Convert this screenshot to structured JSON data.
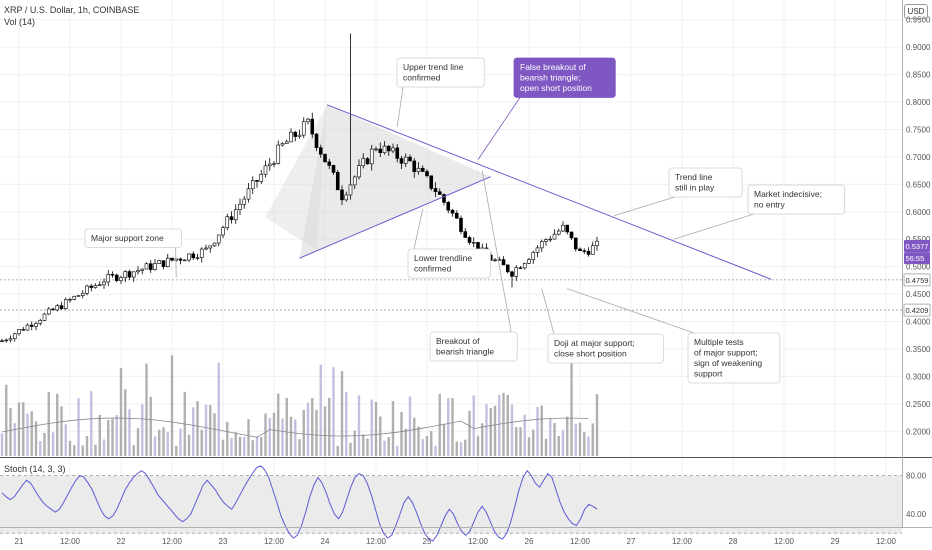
{
  "header": {
    "symbol": "XRP / U.S. Dollar, 1h, COINBASE",
    "volume_indicator": "Vol (14)",
    "stoch_indicator": "Stoch (14, 3, 3)",
    "currency_button": "USD"
  },
  "colors": {
    "bull_candle": "#ffffff",
    "bear_candle": "#000000",
    "trend_line": "#6a5acd",
    "triangle_fill": "#d9d9d9",
    "volume_gray": "#b0b0b0",
    "volume_purple": "#c8bde0",
    "callout_purple": "#7e57c2",
    "stoch_line": "#5b5bd6"
  },
  "chart_data": [
    {
      "type": "candlestick",
      "x_ticks": [
        "21",
        "12:00",
        "22",
        "12:00",
        "23",
        "12:00",
        "24",
        "12:00",
        "25",
        "12:00",
        "26",
        "12:00",
        "27",
        "12:00",
        "28",
        "12:00",
        "29",
        "12:00"
      ],
      "y_ticks": [
        "0.9500",
        "0.9000",
        "0.8500",
        "0.8000",
        "0.7500",
        "0.7000",
        "0.6500",
        "0.6000",
        "0.5500",
        "0.5000",
        "0.4500",
        "0.4000",
        "0.3500",
        "0.3000",
        "0.2500",
        "0.2000"
      ],
      "ylim": [
        0.155,
        0.975
      ],
      "price_labels": [
        {
          "value": 0.5377,
          "text": "0.5377",
          "style": "price"
        },
        {
          "value": 0.5155,
          "text": "56:55",
          "style": "timer"
        },
        {
          "value": 0.4759,
          "text": "0.4759",
          "style": "level"
        },
        {
          "value": 0.4209,
          "text": "0.4209",
          "style": "level"
        }
      ],
      "support_levels": [
        0.4759,
        0.4209
      ],
      "key_points": [
        {
          "t": 0,
          "price": 0.365
        },
        {
          "t": 24,
          "price": 0.4759
        },
        {
          "t": 48,
          "price": 0.53
        },
        {
          "t": 66,
          "price": 0.72
        },
        {
          "t": 72,
          "price": 0.76
        },
        {
          "t": 80,
          "price": 0.63
        },
        {
          "t": 88,
          "price": 0.72
        },
        {
          "t": 96,
          "price": 0.69
        },
        {
          "t": 102,
          "price": 0.64
        },
        {
          "t": 112,
          "price": 0.53
        },
        {
          "t": 120,
          "price": 0.49
        },
        {
          "t": 128,
          "price": 0.55
        },
        {
          "t": 132,
          "price": 0.57
        },
        {
          "t": 136,
          "price": 0.525
        },
        {
          "t": 140,
          "price": 0.5377
        }
      ],
      "trend_lines": [
        {
          "name": "upper",
          "from": {
            "t": 76.5,
            "price": 0.795
          },
          "to": {
            "t": 181,
            "price": 0.477
          }
        },
        {
          "name": "lower",
          "from": {
            "t": 70,
            "price": 0.5155
          },
          "to": {
            "t": 115,
            "price": 0.664
          }
        }
      ],
      "annotations": [
        {
          "text": [
            "Upper trend line",
            "confirmed"
          ],
          "box": "plain",
          "anchor": {
            "t": 93,
            "price": 0.755
          }
        },
        {
          "text": [
            "False breakout of",
            "bearish triangle;",
            "open short position"
          ],
          "box": "purple",
          "anchor": {
            "t": 112,
            "price": 0.695
          }
        },
        {
          "text": [
            "Trend line",
            "still in play"
          ],
          "box": "plain",
          "anchor": {
            "t": 144,
            "price": 0.593
          }
        },
        {
          "text": [
            "Market indecisive;",
            "no entry"
          ],
          "box": "plain",
          "anchor": {
            "t": 158,
            "price": 0.55
          }
        },
        {
          "text": [
            "Major support zone"
          ],
          "box": "plain",
          "anchor": {
            "t": 41,
            "price": 0.48
          }
        },
        {
          "text": [
            "Lower trendline",
            "confirmed"
          ],
          "box": "plain",
          "anchor": {
            "t": 99,
            "price": 0.605
          }
        },
        {
          "text": [
            "Breakout of",
            "bearish triangle"
          ],
          "box": "plain",
          "anchor": {
            "t": 113,
            "price": 0.675
          }
        },
        {
          "text": [
            "Doji at major support;",
            "close short position"
          ],
          "box": "plain",
          "anchor": {
            "t": 127,
            "price": 0.46
          }
        },
        {
          "text": [
            "Multiple tests",
            "of major support;",
            "sign of weakening",
            "support"
          ],
          "box": "plain",
          "anchor": {
            "t": 133,
            "price": 0.46
          }
        }
      ]
    },
    {
      "type": "stochastic",
      "y_ticks": [
        "80.00",
        "40.00"
      ],
      "ylim": [
        0,
        100
      ],
      "band": [
        20,
        80
      ],
      "k_values": [
        62,
        58,
        55,
        58,
        64,
        70,
        75,
        72,
        65,
        58,
        52,
        48,
        45,
        42,
        45,
        52,
        60,
        68,
        75,
        80,
        78,
        72,
        65,
        55,
        45,
        38,
        35,
        38,
        45,
        55,
        65,
        72,
        78,
        82,
        85,
        82,
        75,
        68,
        60,
        55,
        50,
        45,
        40,
        35,
        32,
        35,
        40,
        50,
        60,
        70,
        75,
        70,
        65,
        58,
        52,
        48,
        45,
        52,
        60,
        68,
        75,
        82,
        88,
        90,
        86,
        78,
        65,
        52,
        38,
        28,
        20,
        15,
        18,
        28,
        42,
        58,
        70,
        78,
        72,
        62,
        50,
        40,
        35,
        42,
        55,
        68,
        78,
        82,
        80,
        72,
        60,
        45,
        30,
        20,
        15,
        18,
        28,
        40,
        52,
        58,
        52,
        42,
        30,
        20,
        14,
        12,
        18,
        28,
        38,
        45,
        40,
        30,
        22,
        18,
        22,
        32,
        42,
        48,
        42,
        32,
        22,
        16,
        14,
        20,
        32,
        48,
        65,
        78,
        85,
        80,
        72,
        68,
        75,
        82,
        78,
        65,
        52,
        42,
        35,
        30,
        28,
        35,
        45,
        50,
        48,
        45
      ]
    }
  ]
}
